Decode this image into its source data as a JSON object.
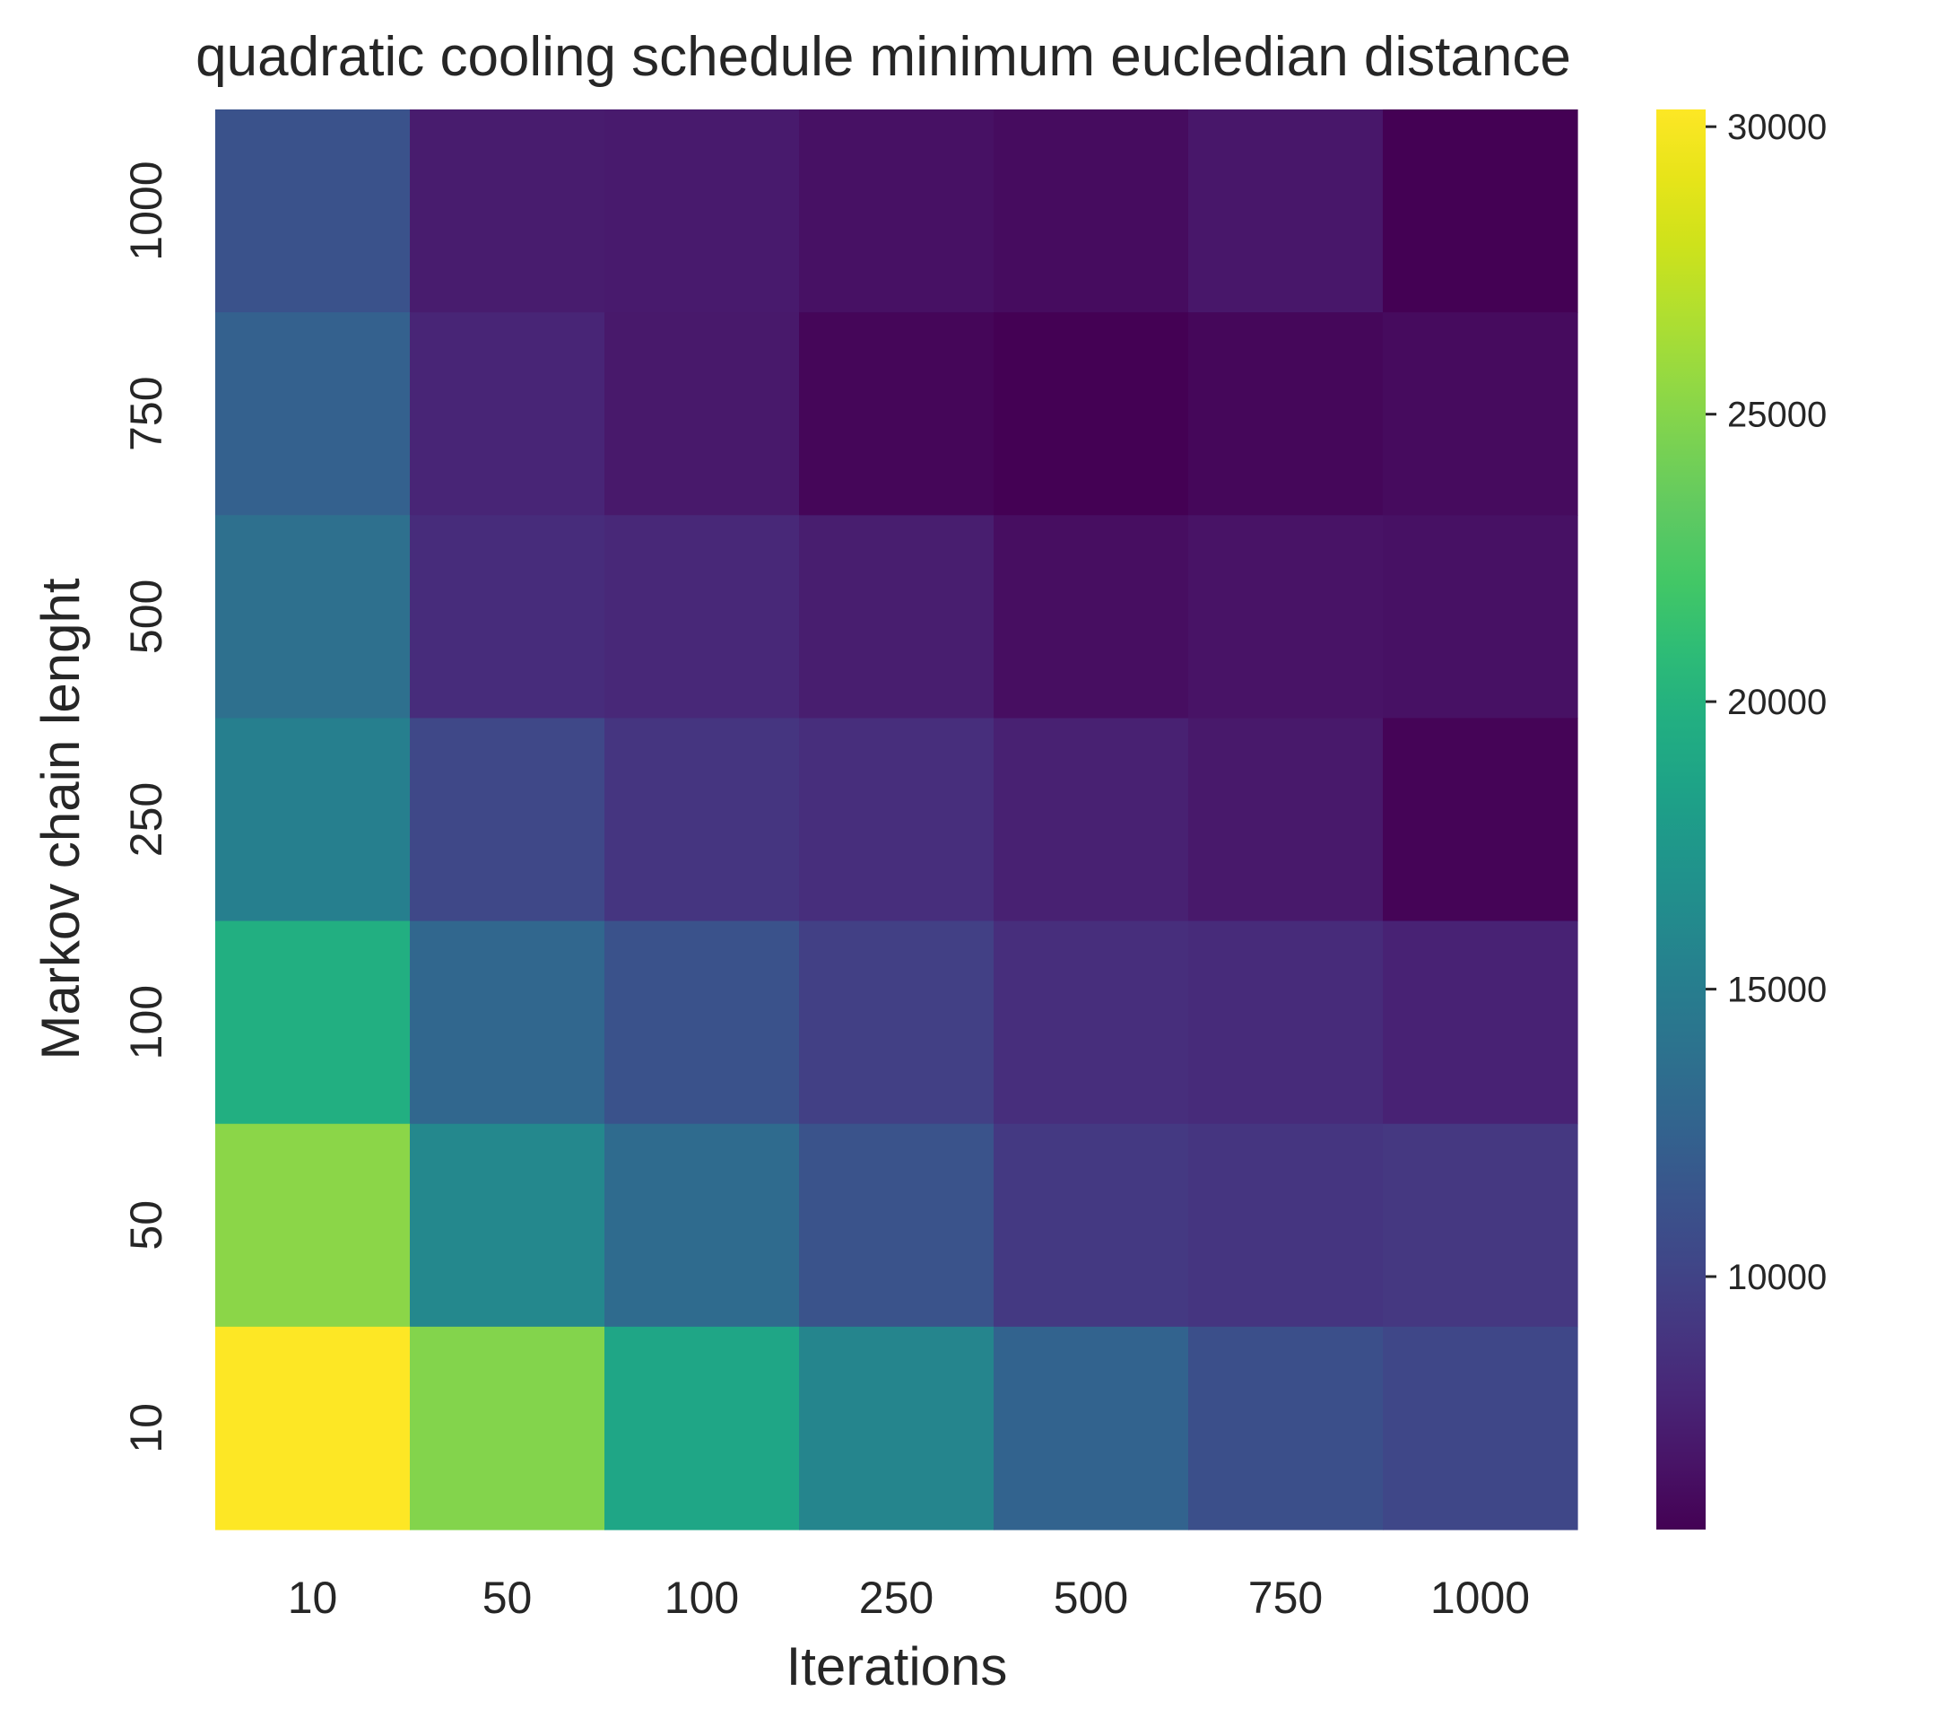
{
  "chart_data": {
    "type": "heatmap",
    "title": "quadratic cooling schedule minimum eucledian distance",
    "xlabel": "Iterations",
    "ylabel": "Markov chain lenght",
    "x_categories": [
      "10",
      "50",
      "100",
      "250",
      "500",
      "750",
      "1000"
    ],
    "y_categories": [
      "1000",
      "750",
      "500",
      "250",
      "100",
      "50",
      "10"
    ],
    "values": [
      [
        11200,
        7300,
        7200,
        6600,
        6300,
        7000,
        5600
      ],
      [
        12400,
        7900,
        7100,
        5900,
        5600,
        6000,
        6200
      ],
      [
        13700,
        8400,
        8100,
        7400,
        6400,
        6700,
        6600
      ],
      [
        15200,
        10400,
        9000,
        8500,
        7600,
        7100,
        5800
      ],
      [
        19700,
        12900,
        11200,
        9800,
        8500,
        8300,
        7700
      ],
      [
        25200,
        16000,
        13300,
        11300,
        9300,
        9000,
        9200
      ],
      [
        30300,
        24900,
        18800,
        15700,
        12600,
        11000,
        10300
      ]
    ],
    "colormap": "viridis",
    "colorbar": {
      "vmin": 5600,
      "vmax": 30300,
      "ticks": [
        10000,
        15000,
        20000,
        25000,
        30000
      ]
    },
    "grid": false,
    "legend": "colorbar-right"
  }
}
